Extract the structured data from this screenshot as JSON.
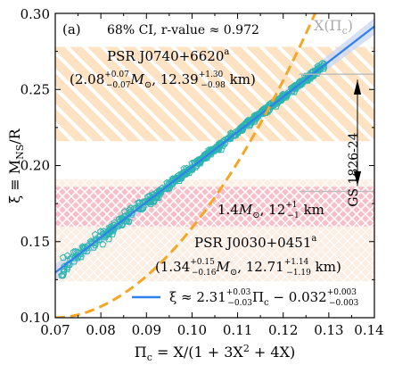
{
  "chart_data": {
    "type": "scatter",
    "panel_label": "(a)",
    "annotation": "68% CI, r-value ≈ 0.972",
    "xlabel": "Π_c = X/(1 + 3X² + 4X)",
    "ylabel": "ξ ≡ M_NS/R",
    "xlim": [
      0.07,
      0.14
    ],
    "ylim": [
      0.1,
      0.3
    ],
    "xticks": [
      "0.07",
      "0.08",
      "0.09",
      "0.10",
      "0.11",
      "0.12",
      "0.13",
      "0.14"
    ],
    "yticks": [
      "0.10",
      "0.15",
      "0.20",
      "0.25",
      "0.30"
    ],
    "grid": false,
    "colors": {
      "scatter": "#2bb5ae",
      "fit": "#2f80ed",
      "ci_band": "#c9d6f2",
      "curve": "#f5a623",
      "psr_band": "#fde3c4",
      "pink_band": "#f7b6c5",
      "gs_line": "#bbbbbb"
    },
    "fit_line": {
      "label": "ξ ≈ 2.31^{+0.03}_{−0.03} Π_c − 0.032^{+0.003}_{−0.003}",
      "slope": 2.31,
      "intercept": -0.032
    },
    "curve_label": "X(Π_c)",
    "bands": [
      {
        "name": "PSR J0740+6620",
        "superscript": "a",
        "detail": "(2.08^{+0.07}_{−0.07} M_⊙, 12.39^{+1.30}_{−0.98} km)",
        "y_range": [
          0.216,
          0.278
        ]
      },
      {
        "name": "1.4M_⊙, 12^{+1}_{−1} km",
        "y_range": [
          0.16,
          0.186
        ]
      },
      {
        "name": "PSR J0030+0451",
        "superscript": "a",
        "detail": "(1.34^{+0.15}_{−0.16} M_⊙, 12.71^{+1.14}_{−1.19} km)",
        "y_range": [
          0.124,
          0.191
        ]
      }
    ],
    "gs_label": "GS 1826-24",
    "gs_range": [
      0.183,
      0.26
    ],
    "n_points": 520
  }
}
